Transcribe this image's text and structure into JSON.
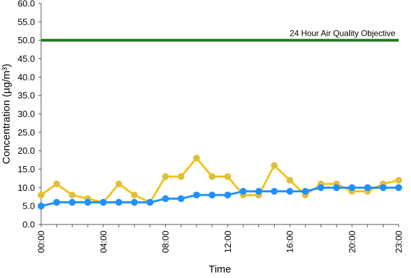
{
  "chart_data": {
    "type": "line",
    "xlabel": "Time",
    "ylabel": "Concentration (µg/m³)",
    "ylim": [
      0,
      60
    ],
    "yticks": [
      "0.0",
      "5.0",
      "10.0",
      "15.0",
      "20.0",
      "25.0",
      "30.0",
      "35.0",
      "40.0",
      "45.0",
      "50.0",
      "55.0",
      "60.0"
    ],
    "x": [
      "00:00",
      "01:00",
      "02:00",
      "03:00",
      "04:00",
      "05:00",
      "06:00",
      "07:00",
      "08:00",
      "09:00",
      "10:00",
      "11:00",
      "12:00",
      "13:00",
      "14:00",
      "15:00",
      "16:00",
      "17:00",
      "18:00",
      "19:00",
      "20:00",
      "21:00",
      "22:00",
      "23:00"
    ],
    "xticks": [
      "00:00",
      "04:00",
      "08:00",
      "12:00",
      "16:00",
      "20:00",
      "23:00"
    ],
    "grid": false,
    "series": [
      {
        "color": "#f2c21b",
        "marker_color": "#d9c04a",
        "values": [
          8,
          11,
          8,
          7,
          6,
          11,
          8,
          6,
          13,
          13,
          18,
          13,
          13,
          8,
          8,
          16,
          12,
          8,
          11,
          11,
          9,
          9,
          11,
          12
        ]
      },
      {
        "color": "#1e90ff",
        "marker_color": "#1e90ff",
        "values": [
          5,
          6,
          6,
          6,
          6,
          6,
          6,
          6,
          7,
          7,
          8,
          8,
          8,
          9,
          9,
          9,
          9,
          9,
          10,
          10,
          10,
          10,
          10,
          10
        ]
      }
    ],
    "reference_line": {
      "label": "24 Hour Air Quality Objective",
      "value": 50,
      "color": "#1f7a1f"
    },
    "colors": {
      "axis": "#555555"
    }
  }
}
